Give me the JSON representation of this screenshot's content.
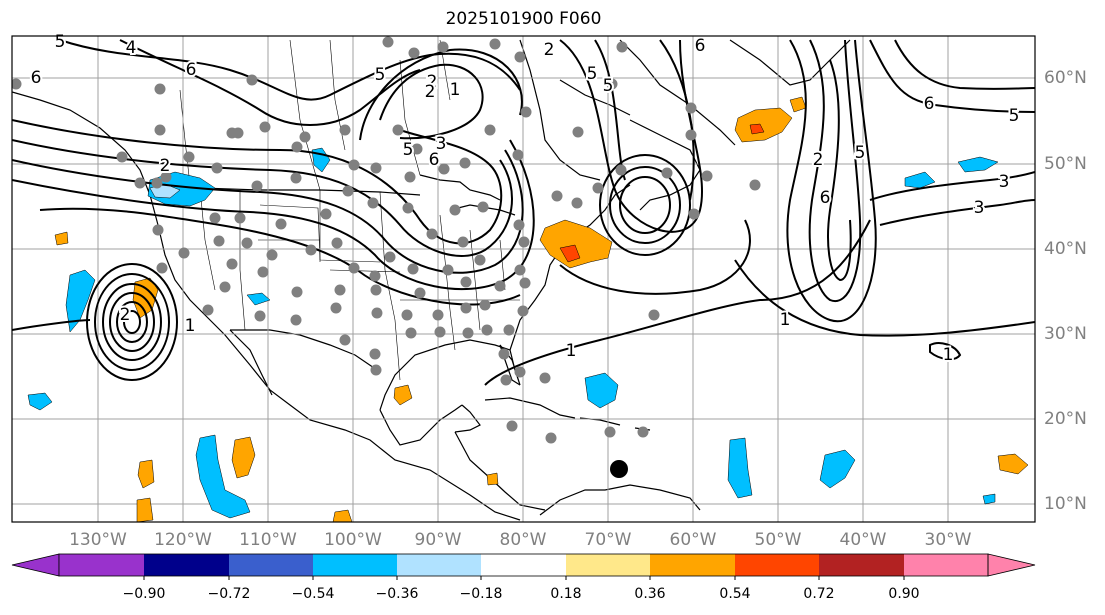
{
  "title": "2025101900 F060",
  "lon_labels": [
    "130°W",
    "120°W",
    "110°W",
    "100°W",
    "90°W",
    "80°W",
    "70°W",
    "60°W",
    "50°W",
    "40°W",
    "30°W"
  ],
  "lat_labels": [
    "60°N",
    "50°N",
    "40°N",
    "30°N",
    "20°N",
    "10°N"
  ],
  "contour_labels": [
    "4",
    "6",
    "6",
    "5",
    "5",
    "2",
    "1",
    "5",
    "2",
    "3",
    "5",
    "6",
    "2",
    "1",
    "5",
    "6",
    "2",
    "2",
    "3",
    "3",
    "6",
    "5",
    "6",
    "5",
    "1",
    "1",
    "2",
    "1"
  ],
  "colorbar": {
    "ticks": [
      "−0.90",
      "−0.72",
      "−0.54",
      "−0.36",
      "−0.18",
      "0.18",
      "0.36",
      "0.54",
      "0.72",
      "0.90"
    ],
    "colors": [
      "#9932cc",
      "#00008b",
      "#3a5fcd",
      "#00bfff",
      "#b0e2ff",
      "#ffffff",
      "#ffe88a",
      "#ffa500",
      "#ff4500",
      "#b22222",
      "#ff82ab"
    ]
  },
  "colors": {
    "grid": "#a0a0a0",
    "labels": "#808080",
    "station": "#808080",
    "marker": "#000000"
  }
}
